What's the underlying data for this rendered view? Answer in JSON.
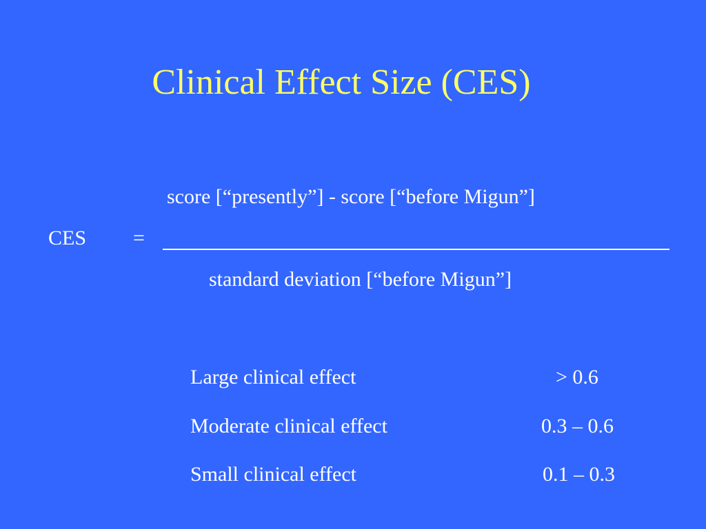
{
  "slide": {
    "title": "Clinical Effect Size (CES)",
    "formula": {
      "label": "CES",
      "equals": "=",
      "numerator": "score [“presently”]  -  score [“before Migun”]",
      "denominator": "standard deviation [“before Migun”]"
    },
    "effect_table": [
      {
        "label": "Large clinical effect",
        "value": "> 0.6"
      },
      {
        "label": "Moderate clinical effect",
        "value": "0.3 – 0.6"
      },
      {
        "label": "Small clinical effect",
        "value": "0.1 – 0.3"
      }
    ]
  },
  "colors": {
    "background": "#3366ff",
    "title": "#ffff66",
    "text": "#ffffff"
  }
}
